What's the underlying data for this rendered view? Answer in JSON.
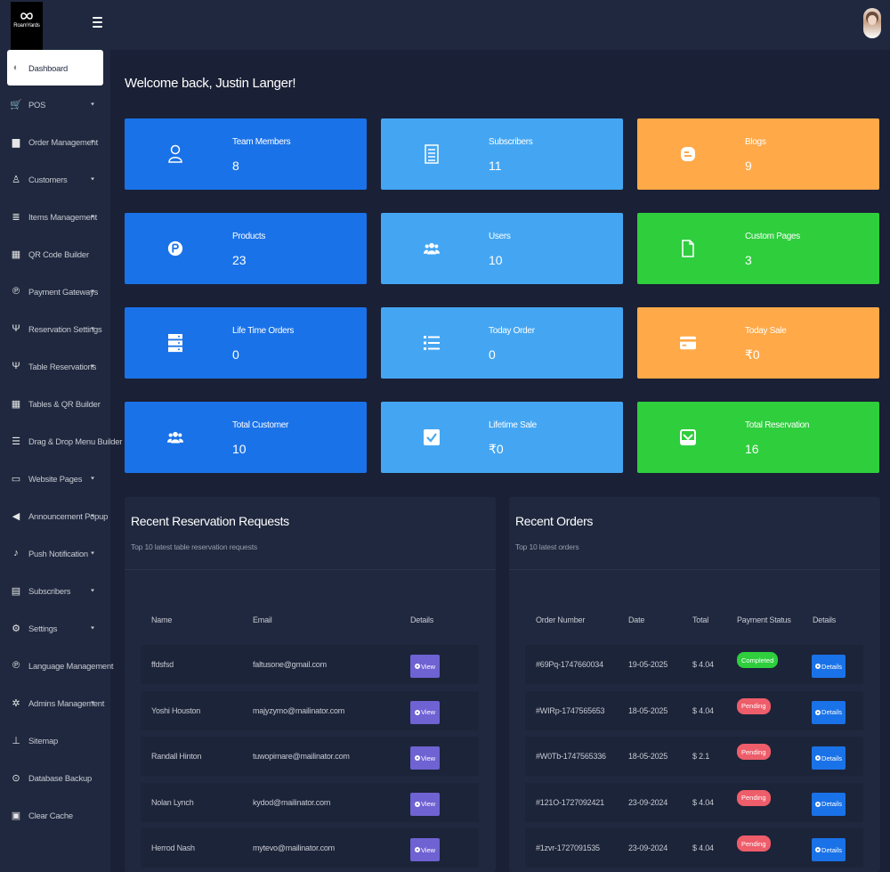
{
  "brand": {
    "name": "RoamYards"
  },
  "sidebar": {
    "items": [
      {
        "label": "Dashboard",
        "icon": "palette-icon",
        "caret": false,
        "active": true
      },
      {
        "label": "POS",
        "icon": "cart-icon",
        "caret": true
      },
      {
        "label": "Order Management",
        "icon": "box-icon",
        "caret": true
      },
      {
        "label": "Customers",
        "icon": "user-icon",
        "caret": true
      },
      {
        "label": "Items Management",
        "icon": "stack-icon",
        "caret": true
      },
      {
        "label": "QR Code Builder",
        "icon": "qr-icon",
        "caret": false
      },
      {
        "label": "Payment Gateways",
        "icon": "coin-icon",
        "caret": true
      },
      {
        "label": "Reservation Settings",
        "icon": "utensils-icon",
        "caret": true
      },
      {
        "label": "Table Reservations",
        "icon": "utensils-icon",
        "caret": true
      },
      {
        "label": "Tables & QR Builder",
        "icon": "table-icon",
        "caret": false
      },
      {
        "label": "Drag & Drop Menu Builder",
        "icon": "bars-icon",
        "caret": false
      },
      {
        "label": "Website Pages",
        "icon": "monitor-icon",
        "caret": true
      },
      {
        "label": "Announcement Popup",
        "icon": "megaphone-icon",
        "caret": true
      },
      {
        "label": "Push Notification",
        "icon": "bell-icon",
        "caret": true
      },
      {
        "label": "Subscribers",
        "icon": "newsletter-icon",
        "caret": true
      },
      {
        "label": "Settings",
        "icon": "gear-icon",
        "caret": true
      },
      {
        "label": "Language Management",
        "icon": "language-icon",
        "caret": false
      },
      {
        "label": "Admins Management",
        "icon": "users-cog-icon",
        "caret": true
      },
      {
        "label": "Sitemap",
        "icon": "sitemap-icon",
        "caret": false
      },
      {
        "label": "Database Backup",
        "icon": "download-icon",
        "caret": false
      },
      {
        "label": "Clear Cache",
        "icon": "cache-icon",
        "caret": false
      }
    ]
  },
  "welcome": "Welcome back, Justin Langer!",
  "stats": [
    {
      "label": "Team Members",
      "value": "8",
      "color": "#1a72e8",
      "icon": "team-icon"
    },
    {
      "label": "Subscribers",
      "value": "11",
      "color": "#44a6f2",
      "icon": "newspaper-icon"
    },
    {
      "label": "Blogs",
      "value": "9",
      "color": "#ffa948",
      "icon": "blogger-icon"
    },
    {
      "label": "Products",
      "value": "23",
      "color": "#1a72e8",
      "icon": "product-hunt-icon"
    },
    {
      "label": "Users",
      "value": "10",
      "color": "#44a6f2",
      "icon": "users-icon"
    },
    {
      "label": "Custom Pages",
      "value": "3",
      "color": "#2ece3d",
      "icon": "file-icon"
    },
    {
      "label": "Life Time Orders",
      "value": "0",
      "color": "#1a72e8",
      "icon": "server-icon"
    },
    {
      "label": "Today Order",
      "value": "0",
      "color": "#44a6f2",
      "icon": "list-icon"
    },
    {
      "label": "Today Sale",
      "value": "₹0",
      "color": "#ffa948",
      "icon": "credit-card-icon"
    },
    {
      "label": "Total Customer",
      "value": "10",
      "color": "#1a72e8",
      "icon": "users-icon"
    },
    {
      "label": "Lifetime Sale",
      "value": "₹0",
      "color": "#44a6f2",
      "icon": "check-square-icon"
    },
    {
      "label": "Total Reservation",
      "value": "16",
      "color": "#2ece3d",
      "icon": "inbox-icon"
    }
  ],
  "reservations": {
    "title": "Recent Reservation Requests",
    "subtitle": "Top 10 latest table reservation requests",
    "headers": [
      "Name",
      "Email",
      "Details"
    ],
    "view_label": "View",
    "rows": [
      {
        "name": "ffdsfsd",
        "email": "faltusone@gmail.com"
      },
      {
        "name": "Yoshi Houston",
        "email": "majyzymo@mailinator.com"
      },
      {
        "name": "Randall Hinton",
        "email": "tuwopimare@mailinator.com"
      },
      {
        "name": "Nolan Lynch",
        "email": "kydod@mailinator.com"
      },
      {
        "name": "Herrod Nash",
        "email": "mytevo@mailinator.com"
      }
    ]
  },
  "orders": {
    "title": "Recent Orders",
    "subtitle": "Top 10 latest orders",
    "headers": [
      "Order Number",
      "Date",
      "Total",
      "Payment Status",
      "Details"
    ],
    "details_label": "Details",
    "rows": [
      {
        "number": "#69Pq-1747660034",
        "date": "19-05-2025",
        "total": "$ 4.04",
        "status": "Completed"
      },
      {
        "number": "#WIRp-1747565653",
        "date": "18-05-2025",
        "total": "$ 4.04",
        "status": "Pending"
      },
      {
        "number": "#W0Tb-1747565336",
        "date": "18-05-2025",
        "total": "$ 2.1",
        "status": "Pending"
      },
      {
        "number": "#121O-1727092421",
        "date": "23-09-2024",
        "total": "$ 4.04",
        "status": "Pending"
      },
      {
        "number": "#1zvr-1727091535",
        "date": "23-09-2024",
        "total": "$ 4.04",
        "status": "Pending"
      }
    ]
  }
}
